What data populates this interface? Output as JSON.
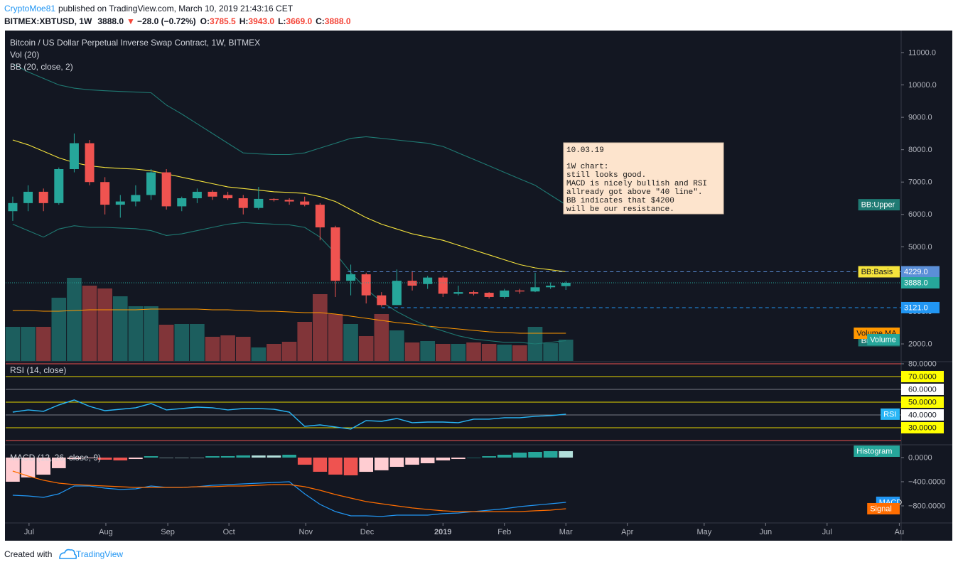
{
  "header": {
    "author": "CryptoMoe81",
    "published": "published on TradingView.com, March 10, 2019 21:43:16 CET",
    "symbol": "BITMEX:XBTUSD, 1W",
    "last": "3888.0",
    "arrow": "▼",
    "change": "−28.0 (−0.72%)",
    "ohlc": [
      {
        "label": "O:",
        "value": "3785.5"
      },
      {
        "label": "H:",
        "value": "3943.0"
      },
      {
        "label": "L:",
        "value": "3669.0"
      },
      {
        "label": "C:",
        "value": "3888.0"
      }
    ]
  },
  "note": {
    "lines": [
      "10.03.19",
      "",
      "1W chart:",
      "still looks good.",
      "MACD is nicely bullish and RSI",
      "allready got above \"40 line\".",
      "BB indicates that $4200",
      "will be our resistance."
    ]
  },
  "footer": {
    "prefix": "Created with",
    "brand": "TradingView"
  },
  "chart_data": [
    {
      "type": "candlestick",
      "title": "Bitcoin / US Dollar Perpetual Inverse Swap Contract, 1W, BITMEX",
      "indicators": [
        "Vol (20)",
        "BB (20, close, 2)"
      ],
      "x": [
        0,
        1,
        2,
        3,
        4,
        5,
        6,
        7,
        8,
        9,
        10,
        11,
        12,
        13,
        14,
        15,
        16,
        17,
        18,
        19,
        20,
        21,
        22,
        23,
        24,
        25,
        26,
        27,
        28,
        29,
        30,
        31,
        32,
        33,
        34,
        35,
        36
      ],
      "xlim": [
        -0.46,
        57.82
      ],
      "xticks": [
        {
          "value": 1.06,
          "label": "Jul"
        },
        {
          "value": 6.06,
          "label": "Aug"
        },
        {
          "value": 10.09,
          "label": "Sep"
        },
        {
          "value": 14.07,
          "label": "Oct"
        },
        {
          "value": 19.07,
          "label": "Nov"
        },
        {
          "value": 23.06,
          "label": "Dec"
        },
        {
          "value": 28,
          "label": "2019"
        },
        {
          "value": 32,
          "label": "Feb"
        },
        {
          "value": 36,
          "label": "Mar"
        },
        {
          "value": 40,
          "label": "Apr"
        },
        {
          "value": 45,
          "label": "May"
        },
        {
          "value": 49,
          "label": "Jun"
        },
        {
          "value": 53,
          "label": "Jul"
        },
        {
          "value": 57.7,
          "label": "Au"
        }
      ],
      "ylim": [
        1474,
        11658
      ],
      "yticks": [
        {
          "value": 2000,
          "label": "2000.0"
        },
        {
          "value": 3000,
          "label": "3000.0"
        },
        {
          "value": 4000,
          "label": "4000.0"
        },
        {
          "value": 5000,
          "label": "5000.0"
        },
        {
          "value": 6000,
          "label": "6000.0"
        },
        {
          "value": 7000,
          "label": "7000.0"
        },
        {
          "value": 8000,
          "label": "8000.0"
        },
        {
          "value": 9000,
          "label": "9000.0"
        },
        {
          "value": 10000,
          "label": "10000.0"
        },
        {
          "value": 11000,
          "label": "11000.0"
        }
      ],
      "grid": false,
      "up_color": "#26a69a",
      "down_color": "#ef5350",
      "open": [
        6100,
        6350,
        6700,
        6350,
        7400,
        8200,
        7000,
        6300,
        6400,
        6600,
        7300,
        6250,
        6500,
        6700,
        6600,
        6500,
        6200,
        6480,
        6450,
        6400,
        6300,
        5600,
        3950,
        4150,
        3500,
        3200,
        3950,
        3850,
        4050,
        3550,
        3600,
        3580,
        3450,
        3650,
        3620,
        3750,
        3785.5
      ],
      "high": [
        6550,
        6900,
        6800,
        7450,
        8500,
        8300,
        7150,
        6600,
        6900,
        7400,
        7400,
        6550,
        6800,
        6750,
        6700,
        6600,
        6850,
        6500,
        6500,
        6550,
        6350,
        5650,
        4450,
        4200,
        3600,
        4300,
        4250,
        4100,
        4100,
        3800,
        3650,
        3600,
        3700,
        3700,
        4200,
        3900,
        3943
      ],
      "low": [
        5800,
        6100,
        6100,
        6300,
        7300,
        6900,
        6000,
        5900,
        6250,
        6450,
        6150,
        6100,
        6350,
        6450,
        6450,
        6000,
        6150,
        6400,
        6300,
        6250,
        5200,
        3450,
        3500,
        3250,
        3150,
        3200,
        3650,
        3700,
        3450,
        3500,
        3500,
        3400,
        3400,
        3550,
        3600,
        3700,
        3669
      ],
      "close": [
        6350,
        6700,
        6350,
        7400,
        8200,
        7000,
        6300,
        6400,
        6600,
        7300,
        6250,
        6500,
        6700,
        6550,
        6500,
        6200,
        6480,
        6450,
        6400,
        6300,
        5600,
        3950,
        4150,
        3500,
        3200,
        3950,
        3800,
        4050,
        3550,
        3600,
        3550,
        3450,
        3650,
        3620,
        3750,
        3800,
        3888
      ],
      "volume": {
        "name": "Volume",
        "values": [
          48,
          48,
          48,
          89,
          117,
          106,
          102,
          91,
          77,
          77,
          51,
          52,
          52,
          34,
          36,
          34,
          19,
          24,
          27,
          55,
          94,
          66,
          52,
          35,
          66,
          43,
          26,
          28,
          24,
          24,
          26,
          24,
          23,
          22,
          48,
          25,
          30
        ],
        "ma": {
          "name": "Volume MA",
          "color": "#ff9800",
          "values": [
            71,
            71,
            70,
            70,
            71,
            72,
            72,
            72,
            72,
            73,
            73,
            73,
            73,
            72,
            72,
            71,
            70,
            70,
            69,
            68,
            68,
            66,
            63,
            60,
            57,
            54,
            52,
            49,
            47,
            45,
            43,
            41,
            40,
            39,
            39,
            39,
            39
          ]
        }
      },
      "series": [
        {
          "name": "BB:Upper",
          "color": "#1f7a73",
          "values": [
            10650,
            10400,
            10200,
            10000,
            9900,
            9850,
            9820,
            9800,
            9780,
            9760,
            9380,
            9100,
            8800,
            8500,
            8200,
            7900,
            7870,
            7850,
            7850,
            7900,
            8050,
            8200,
            8350,
            8400,
            8350,
            8300,
            8250,
            8200,
            8100,
            7900,
            7700,
            7500,
            7300,
            7100,
            6900,
            6600,
            6300
          ]
        },
        {
          "name": "BB:Basis",
          "color": "#f5e33c",
          "values": [
            8300,
            8150,
            7950,
            7750,
            7600,
            7500,
            7450,
            7420,
            7400,
            7350,
            7250,
            7150,
            7050,
            6950,
            6850,
            6800,
            6750,
            6700,
            6680,
            6650,
            6550,
            6400,
            6150,
            5900,
            5700,
            5550,
            5400,
            5300,
            5200,
            5050,
            4900,
            4750,
            4600,
            4450,
            4350,
            4290,
            4229
          ]
        },
        {
          "name": "BB:Lower",
          "color": "#1f7a73",
          "values": [
            5700,
            5500,
            5300,
            5550,
            5650,
            5600,
            5600,
            5580,
            5560,
            5500,
            5350,
            5400,
            5500,
            5600,
            5700,
            5750,
            5720,
            5700,
            5680,
            5600,
            5300,
            4800,
            4200,
            3700,
            3300,
            3000,
            2750,
            2550,
            2400,
            2250,
            2150,
            2100,
            2050,
            2050,
            2000,
            2050,
            2100
          ]
        }
      ],
      "hlines": [
        {
          "value": 4229,
          "label": "4229.0",
          "start": 21.8,
          "color": "#5b8fd8"
        },
        {
          "value": 3121,
          "label": "3121.0",
          "start": 24,
          "color": "#2196f3"
        }
      ],
      "last_price": {
        "value": 3888,
        "label": "3888.0",
        "color": "#26a69a"
      }
    },
    {
      "type": "line",
      "title": "RSI (14, close)",
      "ylim": [
        17.2,
        81.1
      ],
      "yticks": [
        {
          "value": 30,
          "label": "30.0000"
        },
        {
          "value": 40,
          "label": "40.0000"
        },
        {
          "value": 50,
          "label": "50.0000"
        },
        {
          "value": 60,
          "label": "60.0000"
        },
        {
          "value": 70,
          "label": "70.0000"
        },
        {
          "value": 80,
          "label": "80.0000"
        }
      ],
      "levels": [
        {
          "value": 80,
          "color": "#ef5350"
        },
        {
          "value": 70,
          "color": "#e6d400",
          "label_bg": "#ffff00"
        },
        {
          "value": 60,
          "color": "#787b86",
          "label_bg": "#ffffff"
        },
        {
          "value": 50,
          "color": "#e6d400",
          "label_bg": "#ffff00"
        },
        {
          "value": 40,
          "color": "#787b86",
          "label_bg": "#ffffff"
        },
        {
          "value": 30,
          "color": "#e6d400",
          "label_bg": "#ffff00"
        },
        {
          "value": 20,
          "color": "#ef5350"
        }
      ],
      "series": [
        {
          "name": "RSI",
          "color": "#29b6f6",
          "values": [
            42.2,
            43.9,
            42.8,
            47.8,
            51.7,
            46.7,
            43.3,
            44.4,
            45.6,
            48.9,
            43.9,
            45.0,
            46.1,
            45.6,
            43.9,
            45.0,
            45.0,
            44.4,
            42.2,
            31.1,
            32.2,
            30.6,
            28.9,
            35.6,
            35.0,
            37.2,
            33.9,
            34.4,
            34.4,
            33.9,
            36.7,
            36.7,
            37.8,
            37.8,
            38.9,
            39.4,
            40.6
          ]
        }
      ]
    },
    {
      "type": "macd",
      "title": "MACD (12, 26, close, 9)",
      "ylim": [
        -1071,
        200
      ],
      "yticks": [
        {
          "value": -800,
          "label": "−800.0000"
        },
        {
          "value": -400,
          "label": "−400.0000"
        },
        {
          "value": 0,
          "label": "0.0000"
        }
      ],
      "histogram": {
        "name": "Histogram",
        "colors": [
          "#26a69a",
          "#b2dfdb",
          "#ffcdd2",
          "#ef5350"
        ],
        "values": [
          -400,
          -329,
          -283,
          -176,
          -24,
          -12,
          -35,
          -47,
          -24,
          23,
          0,
          0,
          0,
          23,
          24,
          36,
          35,
          35,
          47,
          -118,
          -235,
          -282,
          -294,
          -236,
          -211,
          -153,
          -118,
          -94,
          -47,
          -24,
          0,
          23,
          47,
          82,
          94,
          106,
          106
        ]
      },
      "series": [
        {
          "name": "MACD",
          "color": "#2196f3",
          "values": [
            -624,
            -635,
            -659,
            -600,
            -471,
            -471,
            -506,
            -529,
            -518,
            -471,
            -494,
            -494,
            -482,
            -459,
            -447,
            -435,
            -424,
            -412,
            -400,
            -600,
            -776,
            -894,
            -965,
            -965,
            -976,
            -953,
            -953,
            -953,
            -929,
            -918,
            -894,
            -871,
            -847,
            -812,
            -788,
            -765,
            -741
          ]
        },
        {
          "name": "Signal",
          "color": "#ff6d00",
          "values": [
            -224,
            -306,
            -376,
            -424,
            -447,
            -459,
            -471,
            -482,
            -494,
            -494,
            -494,
            -494,
            -482,
            -482,
            -471,
            -471,
            -459,
            -447,
            -447,
            -482,
            -541,
            -612,
            -671,
            -729,
            -765,
            -800,
            -835,
            -859,
            -882,
            -894,
            -894,
            -894,
            -894,
            -894,
            -882,
            -871,
            -847
          ]
        }
      ]
    }
  ]
}
